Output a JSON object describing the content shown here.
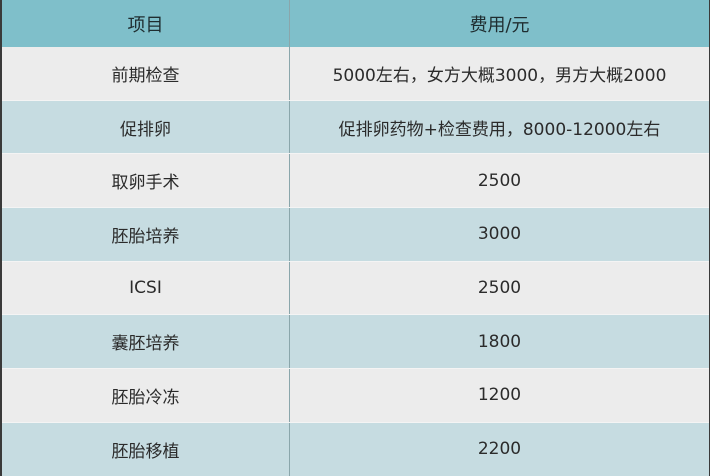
{
  "header": {
    "item": "项目",
    "cost": "费用/元"
  },
  "rows": [
    {
      "item": "前期检查",
      "cost": "5000左右，女方大概3000，男方大概2000"
    },
    {
      "item": "促排卵",
      "cost": "促排卵药物+检查费用，8000-12000左右"
    },
    {
      "item": "取卵手术",
      "cost": "2500"
    },
    {
      "item": "胚胎培养",
      "cost": "3000"
    },
    {
      "item": "ICSI",
      "cost": "2500"
    },
    {
      "item": "囊胚培养",
      "cost": "1800"
    },
    {
      "item": "胚胎冷冻",
      "cost": "1200"
    },
    {
      "item": "胚胎移植",
      "cost": "2200"
    }
  ],
  "colors": {
    "header": "#7fbfca",
    "row_light": "#ececec",
    "row_blue": "#c6dce1"
  }
}
